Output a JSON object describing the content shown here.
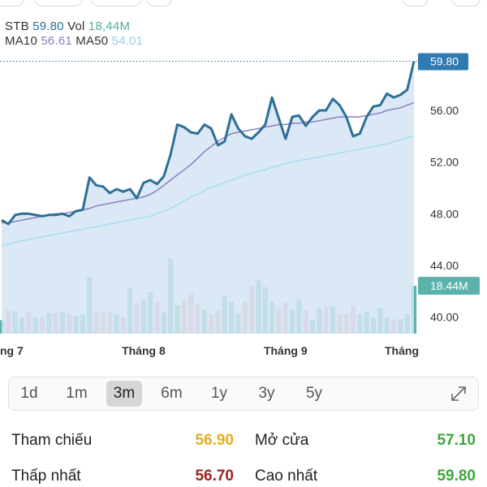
{
  "header": {
    "symbol": "STB",
    "price": "59.80",
    "vol_label": "Vol",
    "vol_value": "18,44M",
    "ma10_label": "MA10",
    "ma10_value": "56.61",
    "ma50_label": "MA50",
    "ma50_value": "54.01"
  },
  "colors": {
    "price_line": "#2e6f96",
    "price_fill": "#d3e5f3",
    "ma10": "#8e7cc3",
    "ma50": "#a8dcf0",
    "vol_up": "#5cb2ab",
    "vol_down": "#ec9aa0",
    "tag": "#2f7ab2",
    "ref": "#e0b020",
    "low": "#a32121",
    "high": "#3aa83a"
  },
  "chart_data": {
    "type": "line",
    "y_ticks": [
      "56.00",
      "52.00",
      "48.00",
      "44.00",
      "40.00"
    ],
    "y_tick_values": [
      56,
      52,
      48,
      44,
      40
    ],
    "x_labels": [
      "ng 7",
      "Tháng 8",
      "Tháng 9",
      "Tháng"
    ],
    "x_label_index": [
      0,
      21,
      42,
      61
    ],
    "last_price_label": "59.80",
    "last_volume_label": "18.44M",
    "price": [
      47.5,
      47.2,
      47.9,
      48.0,
      48.0,
      47.9,
      47.8,
      47.9,
      47.9,
      48.0,
      47.8,
      48.2,
      48.3,
      50.8,
      50.2,
      50.1,
      49.6,
      49.9,
      49.7,
      49.9,
      49.2,
      50.4,
      50.6,
      50.3,
      50.9,
      52.6,
      54.9,
      54.7,
      54.3,
      54.2,
      54.9,
      54.6,
      53.3,
      53.6,
      55.7,
      54.6,
      54.0,
      53.8,
      54.3,
      54.9,
      57.0,
      55.4,
      53.8,
      55.5,
      55.6,
      54.8,
      55.5,
      56.0,
      56.0,
      56.9,
      56.4,
      55.5,
      54.0,
      54.2,
      55.5,
      56.3,
      56.4,
      57.3,
      57.0,
      57.2,
      57.6,
      59.8
    ],
    "ma10": [
      47.3,
      47.3,
      47.4,
      47.5,
      47.6,
      47.7,
      47.8,
      47.9,
      48.0,
      48.0,
      48.1,
      48.2,
      48.3,
      48.4,
      48.6,
      48.7,
      48.8,
      48.9,
      49.0,
      49.1,
      49.2,
      49.3,
      49.5,
      49.8,
      50.2,
      50.6,
      51.0,
      51.4,
      51.8,
      52.3,
      52.8,
      53.2,
      53.6,
      53.9,
      54.2,
      54.3,
      54.4,
      54.5,
      54.6,
      54.7,
      54.8,
      54.9,
      54.9,
      55.0,
      55.0,
      55.1,
      55.1,
      55.2,
      55.3,
      55.4,
      55.5,
      55.5,
      55.5,
      55.5,
      55.6,
      55.7,
      55.8,
      56.0,
      56.1,
      56.2,
      56.4,
      56.6
    ],
    "ma50": [
      45.5,
      45.6,
      45.8,
      45.9,
      46.0,
      46.1,
      46.2,
      46.3,
      46.4,
      46.5,
      46.6,
      46.7,
      46.8,
      46.9,
      47.0,
      47.1,
      47.2,
      47.3,
      47.4,
      47.5,
      47.6,
      47.7,
      47.8,
      48.0,
      48.2,
      48.4,
      48.7,
      49.0,
      49.3,
      49.5,
      49.8,
      50.0,
      50.2,
      50.4,
      50.6,
      50.8,
      51.0,
      51.1,
      51.3,
      51.4,
      51.6,
      51.7,
      51.9,
      52.0,
      52.1,
      52.2,
      52.3,
      52.4,
      52.5,
      52.6,
      52.7,
      52.8,
      52.9,
      53.0,
      53.1,
      53.2,
      53.3,
      53.4,
      53.6,
      53.7,
      53.9,
      54.0
    ],
    "volume": [
      5.2,
      9.1,
      8.5,
      6.3,
      8.3,
      6.4,
      6.1,
      7.9,
      8.1,
      8.3,
      7.5,
      6.9,
      7.2,
      21.8,
      8.5,
      8.1,
      8.5,
      7.3,
      6.3,
      17.7,
      11.5,
      12.8,
      16.1,
      12.1,
      8.1,
      28.9,
      10.9,
      12.8,
      15.7,
      11.4,
      9.1,
      7.6,
      8.7,
      14.7,
      12.4,
      7.7,
      12.2,
      18.3,
      20.5,
      17.9,
      12.5,
      9.6,
      11.9,
      9.4,
      13.2,
      9.3,
      5.3,
      9.6,
      10.5,
      10.5,
      7.6,
      7.6,
      10.9,
      7.6,
      8.4,
      6.3,
      9.9,
      6.1,
      5.3,
      5.6,
      7.5,
      18.4
    ],
    "volume_up": [
      1,
      0,
      1,
      1,
      0,
      1,
      0,
      1,
      0,
      1,
      0,
      1,
      1,
      1,
      0,
      0,
      0,
      1,
      0,
      1,
      0,
      1,
      1,
      0,
      1,
      1,
      1,
      0,
      0,
      0,
      1,
      0,
      0,
      1,
      1,
      1,
      0,
      0,
      1,
      1,
      1,
      0,
      0,
      1,
      1,
      0,
      1,
      1,
      0,
      1,
      0,
      0,
      0,
      1,
      1,
      1,
      1,
      1,
      0,
      1,
      1,
      1
    ]
  },
  "range_buttons": [
    {
      "label": "1d",
      "active": false
    },
    {
      "label": "1m",
      "active": false
    },
    {
      "label": "3m",
      "active": true
    },
    {
      "label": "6m",
      "active": false
    },
    {
      "label": "1y",
      "active": false
    },
    {
      "label": "3y",
      "active": false
    },
    {
      "label": "5y",
      "active": false
    }
  ],
  "stats": {
    "ref_label": "Tham chiếu",
    "ref_value": "56.90",
    "open_label": "Mở cửa",
    "open_value": "57.10",
    "low_label": "Thấp nhất",
    "low_value": "56.70",
    "high_label": "Cao nhất",
    "high_value": "59.80"
  }
}
